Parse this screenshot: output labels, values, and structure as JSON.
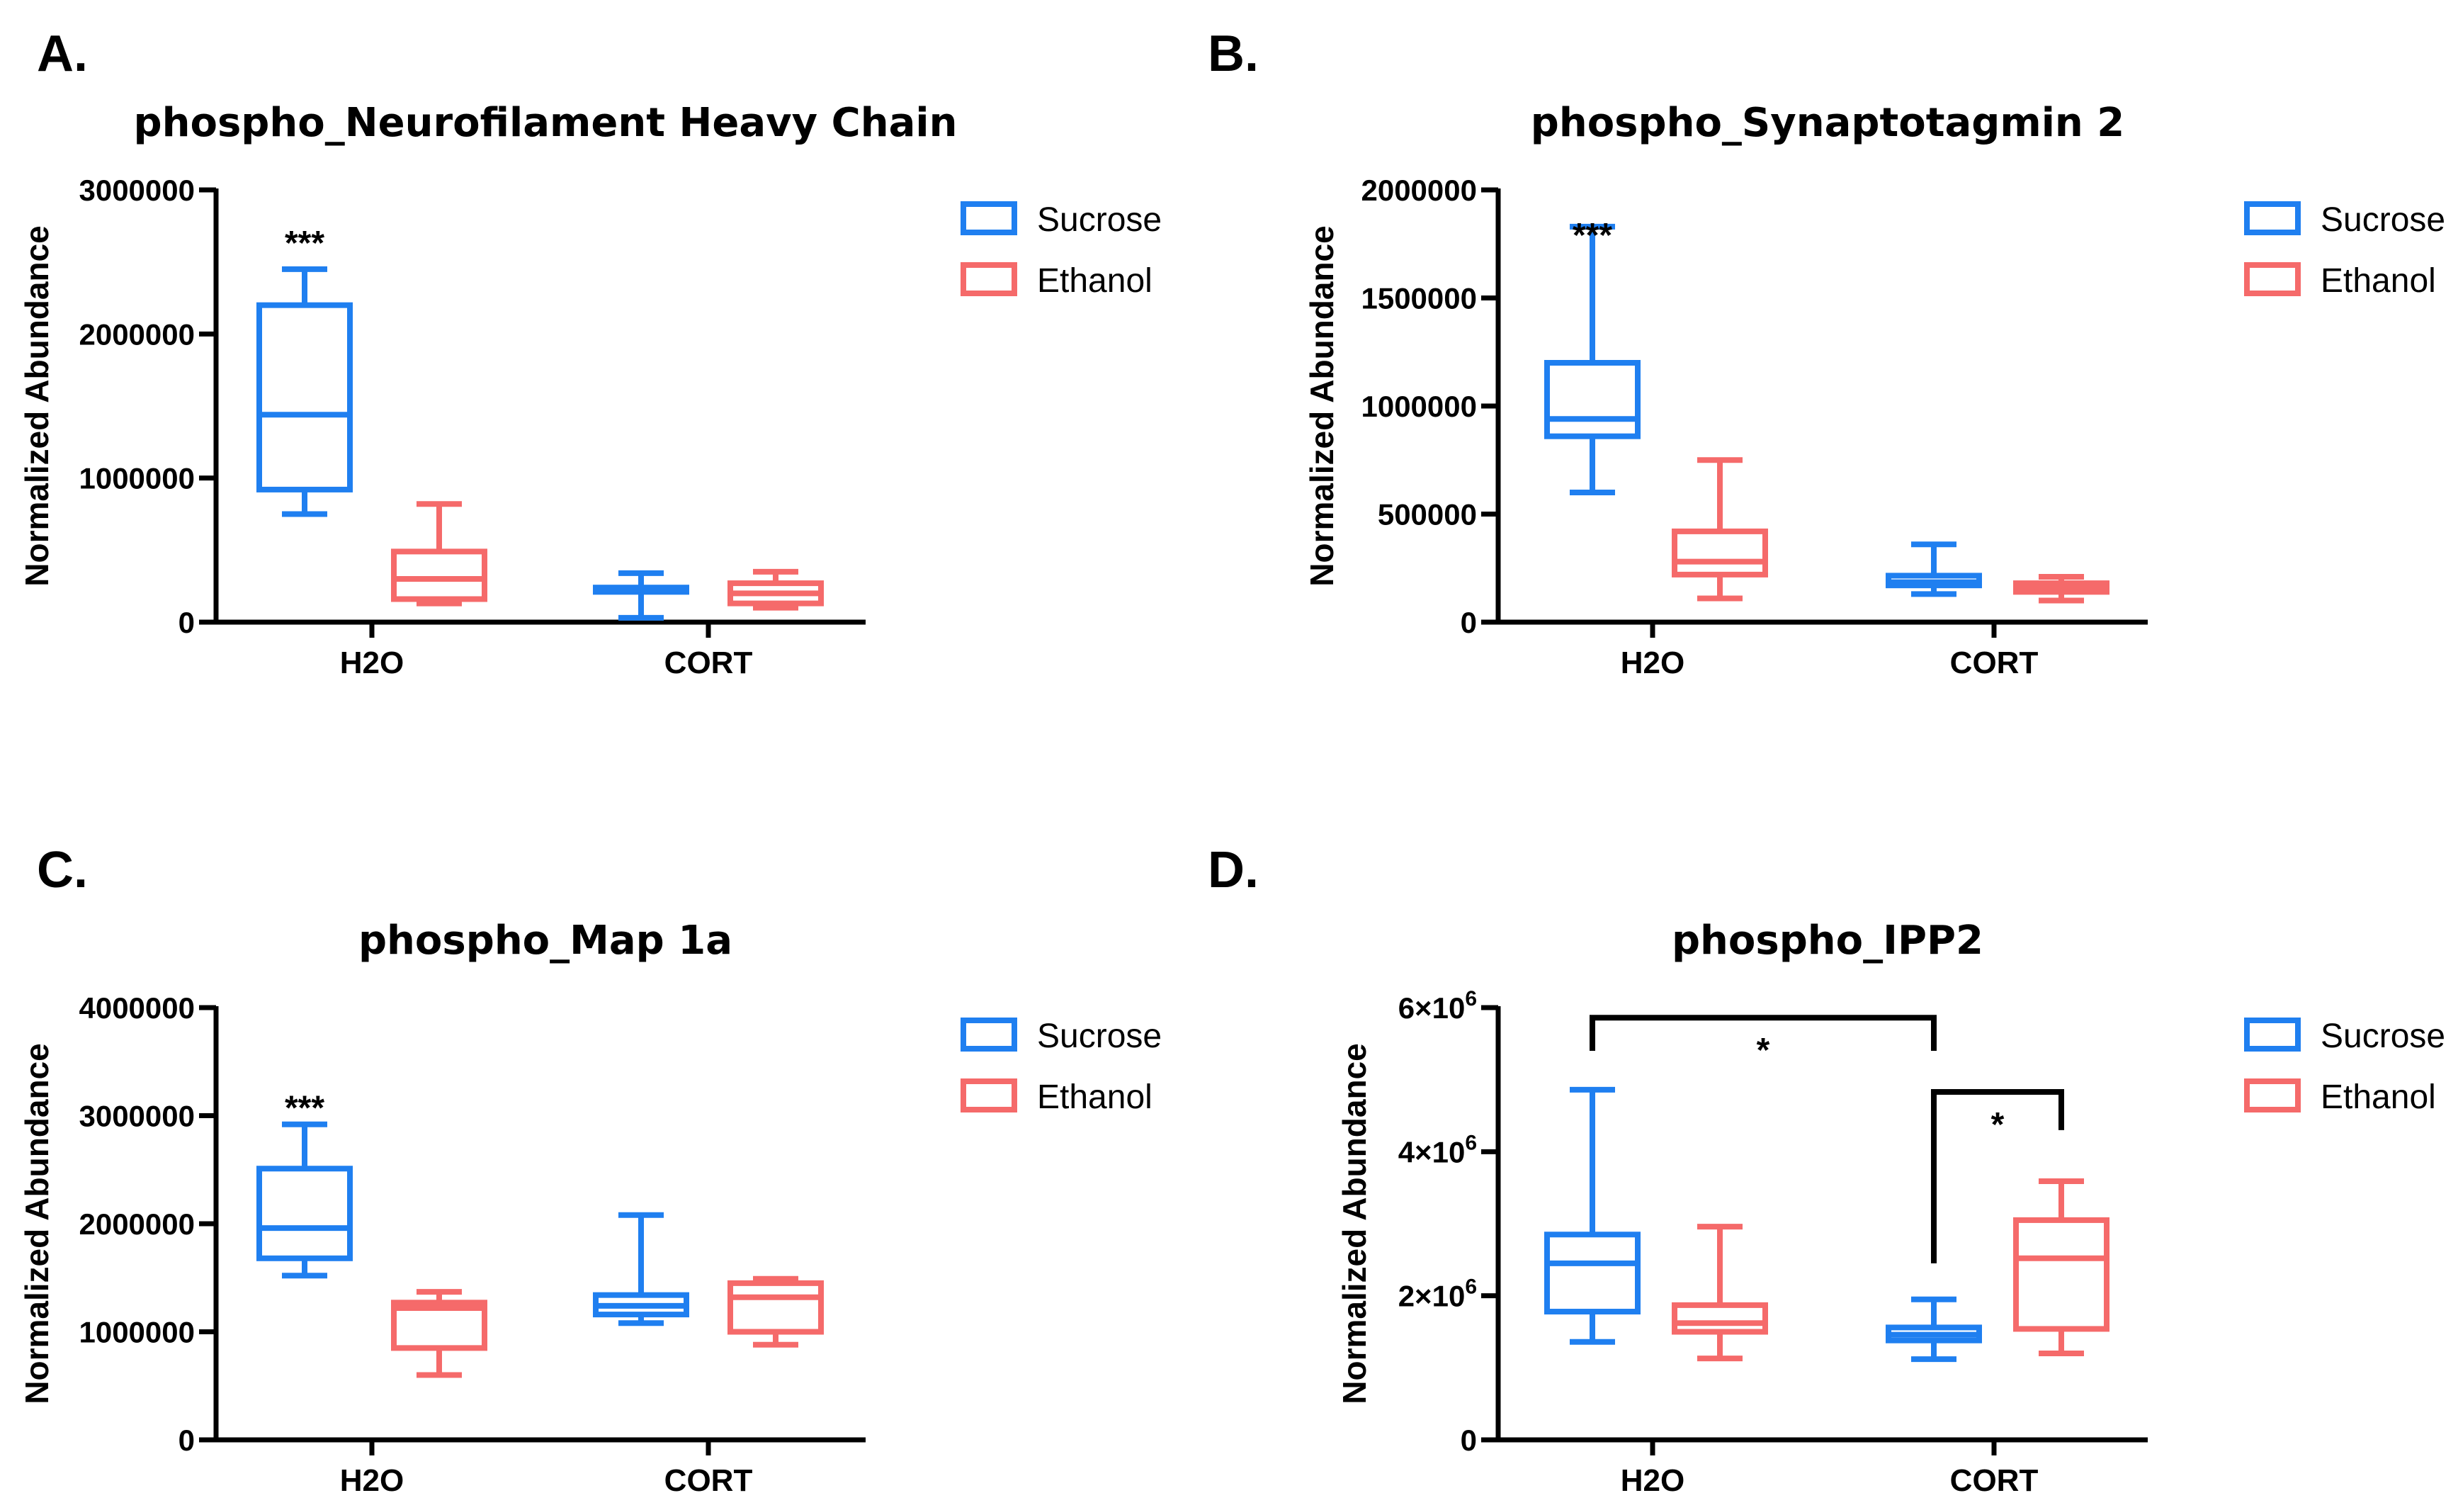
{
  "chart_data": [
    {
      "type": "box",
      "panel_label": "A.",
      "title": "phospho_Neurofilament Heavy Chain",
      "ylabel": "Normalized Abundance",
      "ylim": [
        0,
        3000000
      ],
      "yticks": [
        0,
        1000000,
        2000000,
        3000000
      ],
      "ytick_labels": [
        "0",
        "1000000",
        "2000000",
        "3000000"
      ],
      "categories": [
        "H2O",
        "CORT"
      ],
      "series": [
        {
          "name": "Sucrose",
          "color": "#1f7ff0",
          "boxes": [
            {
              "min": 750000,
              "q1": 920000,
              "median": 1440000,
              "q3": 2200000,
              "max": 2450000
            },
            {
              "min": 30000,
              "q1": 210000,
              "median": 225000,
              "q3": 240000,
              "max": 340000
            }
          ]
        },
        {
          "name": "Ethanol",
          "color": "#f56a6a",
          "boxes": [
            {
              "min": 130000,
              "q1": 160000,
              "median": 300000,
              "q3": 490000,
              "max": 820000
            },
            {
              "min": 100000,
              "q1": 130000,
              "median": 200000,
              "q3": 270000,
              "max": 350000
            }
          ]
        }
      ],
      "annotations": [
        {
          "text": "***",
          "category": 0,
          "series": 0,
          "y": 2690000
        }
      ],
      "brackets": []
    },
    {
      "type": "box",
      "panel_label": "B.",
      "title": "phospho_Synaptotagmin 2",
      "ylabel": "Normalized Abundance",
      "ylim": [
        0,
        2000000
      ],
      "yticks": [
        0,
        500000,
        1000000,
        1500000,
        2000000
      ],
      "ytick_labels": [
        "0",
        "500000",
        "1000000",
        "1500000",
        "2000000"
      ],
      "categories": [
        "H2O",
        "CORT"
      ],
      "series": [
        {
          "name": "Sucrose",
          "color": "#1f7ff0",
          "boxes": [
            {
              "min": 600000,
              "q1": 860000,
              "median": 940000,
              "q3": 1200000,
              "max": 1830000
            },
            {
              "min": 130000,
              "q1": 170000,
              "median": 185000,
              "q3": 215000,
              "max": 360000
            }
          ]
        },
        {
          "name": "Ethanol",
          "color": "#f56a6a",
          "boxes": [
            {
              "min": 110000,
              "q1": 220000,
              "median": 280000,
              "q3": 420000,
              "max": 750000
            },
            {
              "min": 100000,
              "q1": 140000,
              "median": 160000,
              "q3": 180000,
              "max": 210000
            }
          ]
        }
      ],
      "annotations": [
        {
          "text": "***",
          "category": 0,
          "series": 0,
          "y": 1830000
        }
      ],
      "brackets": []
    },
    {
      "type": "box",
      "panel_label": "C.",
      "title": "phospho_Map 1a",
      "ylabel": "Normalized Abundance",
      "ylim": [
        0,
        4000000
      ],
      "yticks": [
        0,
        1000000,
        2000000,
        3000000,
        4000000
      ],
      "ytick_labels": [
        "0",
        "1000000",
        "2000000",
        "3000000",
        "4000000"
      ],
      "categories": [
        "H2O",
        "CORT"
      ],
      "series": [
        {
          "name": "Sucrose",
          "color": "#1f7ff0",
          "boxes": [
            {
              "min": 1520000,
              "q1": 1680000,
              "median": 1960000,
              "q3": 2510000,
              "max": 2920000
            },
            {
              "min": 1080000,
              "q1": 1160000,
              "median": 1240000,
              "q3": 1340000,
              "max": 2080000
            }
          ]
        },
        {
          "name": "Ethanol",
          "color": "#f56a6a",
          "boxes": [
            {
              "min": 600000,
              "q1": 850000,
              "median": 1220000,
              "q3": 1270000,
              "max": 1370000
            },
            {
              "min": 880000,
              "q1": 1000000,
              "median": 1320000,
              "q3": 1450000,
              "max": 1490000
            }
          ]
        }
      ],
      "annotations": [
        {
          "text": "***",
          "category": 0,
          "series": 0,
          "y": 3150000
        }
      ],
      "brackets": []
    },
    {
      "type": "box",
      "panel_label": "D.",
      "title": "phospho_IPP2",
      "ylabel": "Normalized Abundance",
      "ylim": [
        0,
        6000000
      ],
      "yticks": [
        0,
        2000000,
        4000000,
        6000000
      ],
      "ytick_labels": [
        "0",
        "2×10⁶",
        "4×10⁶",
        "6×10⁶"
      ],
      "categories": [
        "H2O",
        "CORT"
      ],
      "series": [
        {
          "name": "Sucrose",
          "color": "#1f7ff0",
          "boxes": [
            {
              "min": 1360000,
              "q1": 1780000,
              "median": 2450000,
              "q3": 2850000,
              "max": 4860000
            },
            {
              "min": 1120000,
              "q1": 1380000,
              "median": 1460000,
              "q3": 1560000,
              "max": 1950000
            }
          ]
        },
        {
          "name": "Ethanol",
          "color": "#f56a6a",
          "boxes": [
            {
              "min": 1130000,
              "q1": 1500000,
              "median": 1620000,
              "q3": 1870000,
              "max": 2960000
            },
            {
              "min": 1200000,
              "q1": 1540000,
              "median": 2520000,
              "q3": 3050000,
              "max": 3590000
            }
          ]
        }
      ],
      "annotations": [],
      "brackets": [
        {
          "text": "*",
          "from": {
            "category": 0,
            "series": 0
          },
          "to": {
            "category": 1,
            "series": 0
          },
          "top": 5860000,
          "from_end": 5400000,
          "to_end": 5400000
        },
        {
          "text": "*",
          "from": {
            "category": 1,
            "series": 0
          },
          "to": {
            "category": 1,
            "series": 1
          },
          "top": 4830000,
          "from_end": 2450000,
          "to_end": 4300000
        }
      ]
    }
  ]
}
